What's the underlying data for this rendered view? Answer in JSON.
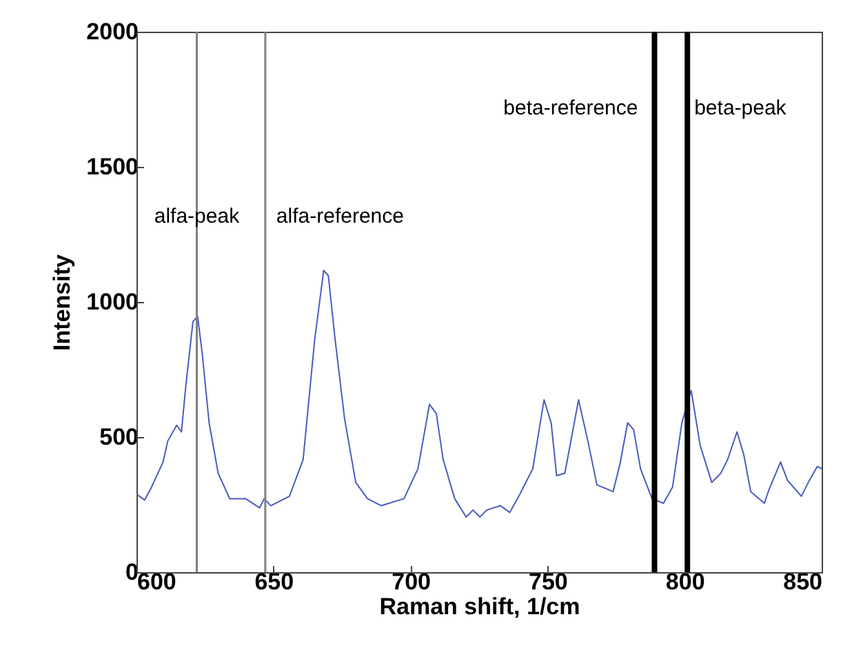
{
  "chart_data": {
    "type": "line",
    "xlabel": "Raman shift, 1/cm",
    "ylabel": "Intensity",
    "x": [
      600,
      603,
      605.5,
      609.7,
      611.4,
      614.7,
      616.4,
      618,
      620.6,
      622.3,
      624,
      626.5,
      629.8,
      634,
      639.8,
      644.9,
      646.6,
      649,
      655.8,
      660.8,
      665,
      668.3,
      670,
      672.5,
      675.9,
      680,
      684.3,
      689.3,
      697.6,
      702.7,
      706.9,
      709.4,
      711.9,
      716.1,
      720.3,
      722.8,
      725.3,
      727.8,
      732.8,
      736.2,
      739.5,
      744.6,
      748.7,
      751.3,
      753.3,
      756.3,
      761.3,
      764.7,
      768,
      773.9,
      776.4,
      779.2,
      781.4,
      783.9,
      788.1,
      792.3,
      795.6,
      799,
      802.4,
      805.7,
      809.9,
      813.2,
      815.7,
      819.1,
      821.6,
      824.1,
      829.1,
      830.8,
      835,
      837.5,
      842.6,
      845.1,
      848.4,
      850
    ],
    "series": [
      {
        "color": "#4a5bbf",
        "values": [
          289,
          267,
          315,
          408,
          485,
          544,
          519,
          689,
          927,
          947,
          808,
          553,
          366,
          272,
          272,
          238,
          272,
          246,
          281,
          417,
          859,
          1117,
          1097,
          859,
          570,
          332,
          272,
          246,
          272,
          383,
          621,
          587,
          417,
          272,
          204,
          230,
          204,
          230,
          246,
          221,
          281,
          383,
          638,
          553,
          357,
          366,
          638,
          485,
          323,
          298,
          400,
          553,
          527,
          383,
          272,
          255,
          315,
          553,
          672,
          468,
          332,
          366,
          417,
          519,
          434,
          298,
          255,
          306,
          408,
          340,
          281,
          332,
          391,
          383
        ]
      }
    ],
    "xlim": [
      600,
      850
    ],
    "xticks": [
      600,
      650,
      700,
      750,
      800,
      850
    ],
    "ylim": [
      0,
      2000
    ],
    "yticks": [
      0,
      500,
      1000,
      1500,
      2000
    ],
    "grid": false,
    "marker": "none",
    "line_style": "solid",
    "ref_lines": [
      {
        "axis": "x",
        "value": 622,
        "label": "alfa-peak",
        "color": "#808080"
      },
      {
        "axis": "x",
        "value": 647,
        "label": "alfa-reference",
        "color": "#808080"
      },
      {
        "axis": "x",
        "value": 789,
        "label": "beta-reference",
        "color": "#000000"
      },
      {
        "axis": "x",
        "value": 801,
        "label": "beta-peak",
        "color": "#000000"
      }
    ]
  }
}
